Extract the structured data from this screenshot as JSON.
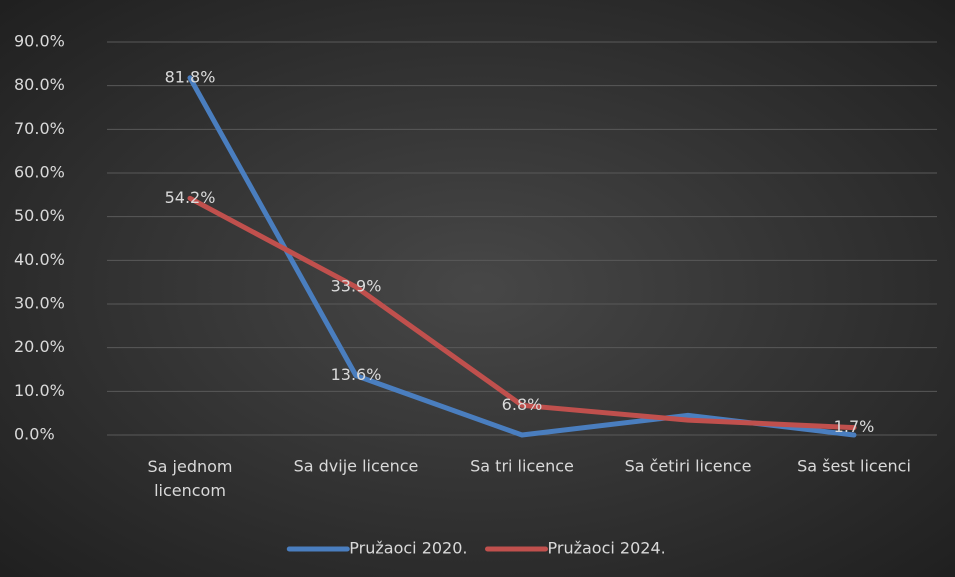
{
  "chart_data": {
    "type": "line",
    "categories": [
      "Sa jednom licencom",
      "Sa dvije licence",
      "Sa tri licence",
      "Sa četiri licence",
      "Sa šest licenci"
    ],
    "series": [
      {
        "name": "Pružaoci 2020.",
        "color": "#4a7ebf",
        "values": [
          81.8,
          13.6,
          0,
          4.5,
          0
        ],
        "value_labels": [
          "81.8%",
          "13.6%",
          null,
          null,
          null
        ]
      },
      {
        "name": "Pružaoci 2024.",
        "color": "#c0504d",
        "values": [
          54.2,
          33.9,
          6.8,
          3.4,
          1.7
        ],
        "value_labels": [
          "54.2%",
          "33.9%",
          "6.8%",
          null,
          "1.7%"
        ]
      }
    ],
    "ylim": [
      0,
      90
    ],
    "yticks": [
      {
        "value": 0,
        "label": "0.0%"
      },
      {
        "value": 10,
        "label": "10.0%"
      },
      {
        "value": 20,
        "label": "20.0%"
      },
      {
        "value": 30,
        "label": "30.0%"
      },
      {
        "value": 40,
        "label": "40.0%"
      },
      {
        "value": 50,
        "label": "50.0%"
      },
      {
        "value": 60,
        "label": "60.0%"
      },
      {
        "value": 70,
        "label": "70.0%"
      },
      {
        "value": 80,
        "label": "80.0%"
      },
      {
        "value": 90,
        "label": "90.0%"
      }
    ],
    "grid": true,
    "legend": "bottom"
  }
}
